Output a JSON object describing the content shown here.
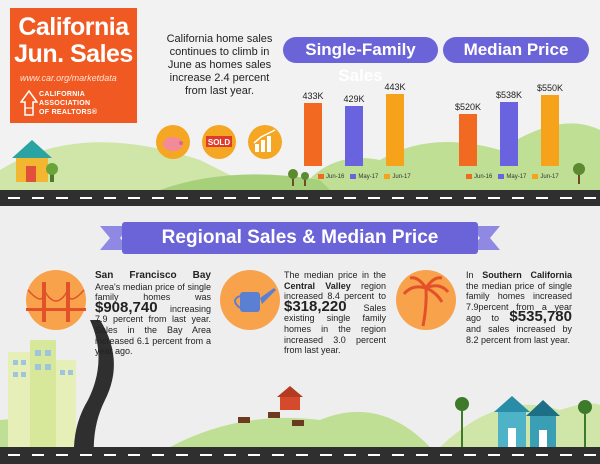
{
  "header": {
    "title_line1": "California",
    "title_line2": "Jun. Sales",
    "url": "www.car.org/marketdata",
    "association": [
      "CALIFORNIA",
      "ASSOCIATION",
      "OF REALTORS®"
    ]
  },
  "intro_text": "California home sales continues to climb in June as homes sales increase 2.4 percent from last year.",
  "icons": [
    "piggy-bank-icon",
    "sold-sign-icon",
    "growth-chart-icon",
    "house-icon"
  ],
  "sold_label": "SOLD",
  "colors": {
    "jun16": "#f26a21",
    "may17": "#6a63e0",
    "jun17": "#f7a21b",
    "banner": "#6b63d8",
    "orange": "#f05a22"
  },
  "chart_data": [
    {
      "type": "bar",
      "title": "Single-Family Sales",
      "categories": [
        "Jun-16",
        "May-17",
        "Jun-17"
      ],
      "values": [
        433,
        429,
        443
      ],
      "value_labels": [
        "433K",
        "429K",
        "443K"
      ],
      "ylabel": "",
      "ylim": [
        0,
        450
      ]
    },
    {
      "type": "bar",
      "title": "Median Price",
      "categories": [
        "Jun-16",
        "May-17",
        "Jun-17"
      ],
      "values": [
        520,
        538,
        550
      ],
      "value_labels": [
        "$520K",
        "$538K",
        "$550K"
      ],
      "ylabel": "",
      "ylim": [
        0,
        560
      ]
    }
  ],
  "regional": {
    "title": "Regional Sales & Median Price",
    "sf": {
      "name": "San Francisco Bay",
      "text1": "Area's median price of single family homes was",
      "price": "$908,740",
      "text2": "increasing 7.9 percent from last year. Sales in the Bay Area increased 6.1 percent from a year ago."
    },
    "cv": {
      "text1": "The median price in the",
      "name": "Central Valley",
      "text2": "region increased 8.4 percent to",
      "price": "$318,220",
      "text3": "Sales existing single family homes in the region increased 3.0 percent from last year."
    },
    "sc": {
      "text1": "In",
      "name": "Southern California",
      "text2": "the median price of single family homes increased 7.9percent from a year ago to",
      "price": "$535,780",
      "text3": "and sales increased by 8.2 percent from last year."
    }
  }
}
